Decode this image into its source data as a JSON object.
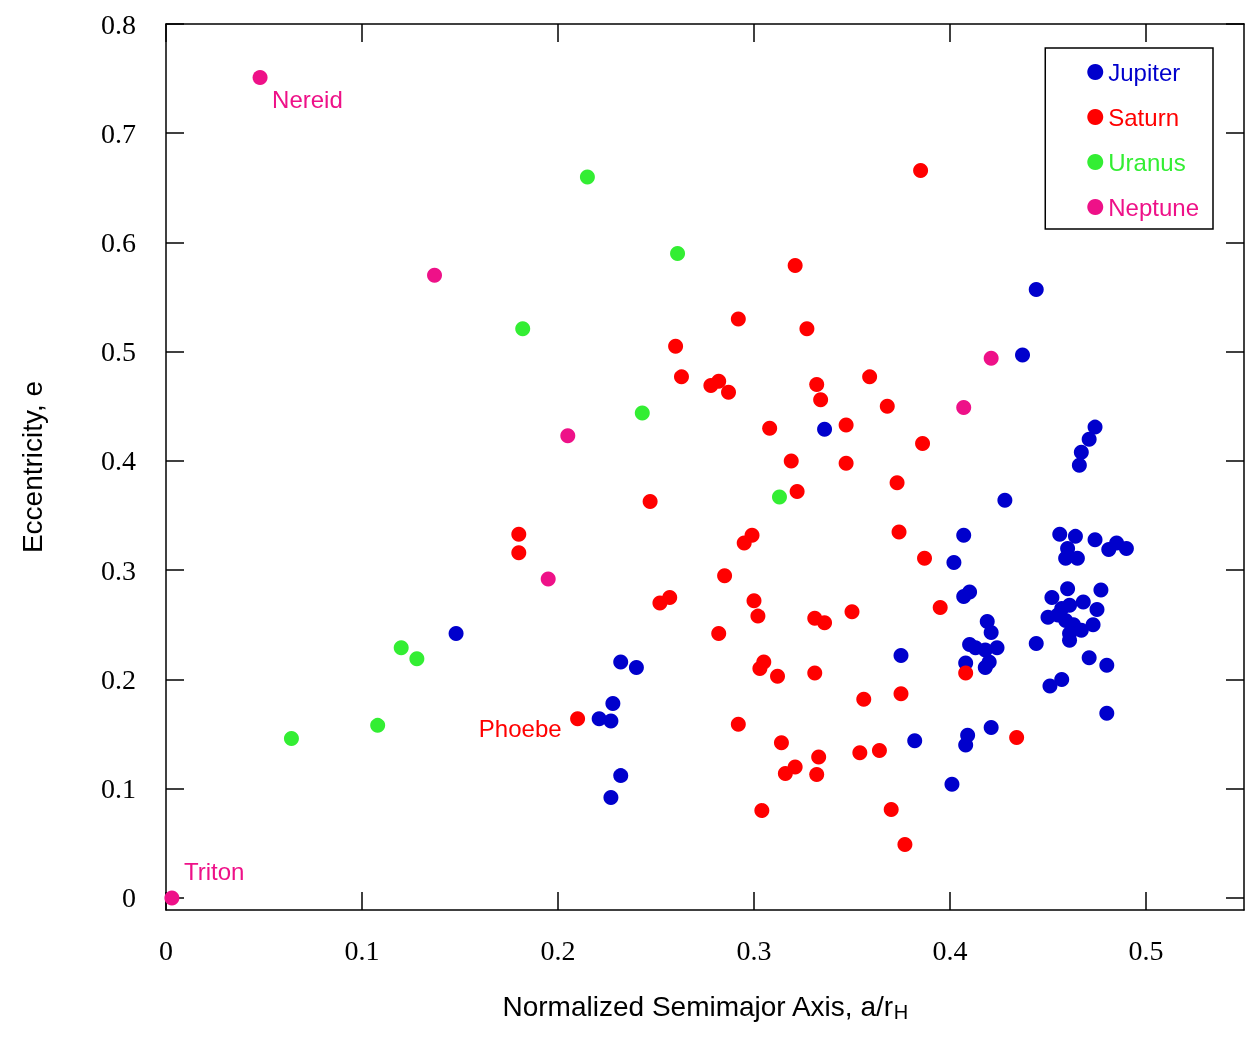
{
  "chart_data": {
    "type": "scatter",
    "xlabel": "Normalized Semimajor Axis, a/r$_{H}$",
    "ylabel": "Eccentricity, e",
    "xlim": [
      0,
      0.55
    ],
    "ylim": [
      -0.011,
      0.8
    ],
    "xticks": [
      0,
      0.1,
      0.2,
      0.3,
      0.4,
      0.5
    ],
    "yticks": [
      0,
      0.1,
      0.2,
      0.3,
      0.4,
      0.5,
      0.6,
      0.7,
      0.8
    ],
    "grid": false,
    "legend": "top right",
    "marker": "circle",
    "annotations": [
      {
        "text": "Nereid",
        "x": 0.048,
        "y": 0.751
      },
      {
        "text": "Phoebe",
        "x": 0.21,
        "y": 0.164
      },
      {
        "text": "Triton",
        "x": 0.003,
        "y": 0
      }
    ],
    "series": [
      {
        "name": "Jupiter",
        "color": "#0000cc",
        "x": [
          0.444,
          0.437,
          0.336,
          0.474,
          0.471,
          0.467,
          0.466,
          0.428,
          0.407,
          0.402,
          0.407,
          0.41,
          0.456,
          0.464,
          0.46,
          0.459,
          0.465,
          0.474,
          0.481,
          0.485,
          0.49,
          0.46,
          0.452,
          0.477,
          0.468,
          0.475,
          0.457,
          0.461,
          0.45,
          0.455,
          0.459,
          0.463,
          0.467,
          0.461,
          0.461,
          0.473,
          0.444,
          0.471,
          0.48,
          0.457,
          0.451,
          0.48,
          0.419,
          0.421,
          0.41,
          0.413,
          0.418,
          0.424,
          0.42,
          0.408,
          0.418,
          0.421,
          0.409,
          0.408,
          0.382,
          0.375,
          0.401,
          0.148,
          0.232,
          0.24,
          0.228,
          0.221,
          0.227,
          0.232,
          0.227
        ],
        "values": [
          0.557,
          0.497,
          0.429,
          0.431,
          0.42,
          0.408,
          0.396,
          0.364,
          0.332,
          0.307,
          0.276,
          0.28,
          0.333,
          0.331,
          0.32,
          0.311,
          0.311,
          0.328,
          0.319,
          0.325,
          0.32,
          0.283,
          0.275,
          0.282,
          0.271,
          0.264,
          0.265,
          0.268,
          0.257,
          0.259,
          0.254,
          0.25,
          0.245,
          0.242,
          0.236,
          0.25,
          0.233,
          0.22,
          0.213,
          0.2,
          0.194,
          0.169,
          0.253,
          0.243,
          0.232,
          0.229,
          0.227,
          0.229,
          0.216,
          0.215,
          0.211,
          0.156,
          0.149,
          0.14,
          0.144,
          0.222,
          0.104,
          0.242,
          0.216,
          0.211,
          0.178,
          0.164,
          0.162,
          0.112,
          0.092
        ]
      },
      {
        "name": "Saturn",
        "color": "#ff0000",
        "x": [
          0.385,
          0.321,
          0.292,
          0.327,
          0.26,
          0.263,
          0.278,
          0.282,
          0.287,
          0.332,
          0.334,
          0.359,
          0.368,
          0.308,
          0.347,
          0.386,
          0.319,
          0.347,
          0.322,
          0.373,
          0.247,
          0.18,
          0.18,
          0.299,
          0.295,
          0.374,
          0.387,
          0.285,
          0.257,
          0.252,
          0.3,
          0.302,
          0.395,
          0.331,
          0.336,
          0.35,
          0.282,
          0.305,
          0.303,
          0.312,
          0.331,
          0.408,
          0.21,
          0.292,
          0.314,
          0.356,
          0.375,
          0.434,
          0.354,
          0.364,
          0.333,
          0.316,
          0.321,
          0.332,
          0.304,
          0.37,
          0.377
        ],
        "values": [
          0.666,
          0.579,
          0.53,
          0.521,
          0.505,
          0.477,
          0.469,
          0.473,
          0.463,
          0.47,
          0.456,
          0.477,
          0.45,
          0.43,
          0.433,
          0.416,
          0.4,
          0.398,
          0.372,
          0.38,
          0.363,
          0.333,
          0.316,
          0.332,
          0.325,
          0.335,
          0.311,
          0.295,
          0.275,
          0.27,
          0.272,
          0.258,
          0.266,
          0.256,
          0.252,
          0.262,
          0.242,
          0.216,
          0.21,
          0.203,
          0.206,
          0.206,
          0.164,
          0.159,
          0.142,
          0.182,
          0.187,
          0.147,
          0.133,
          0.135,
          0.129,
          0.114,
          0.12,
          0.113,
          0.08,
          0.081,
          0.049
        ]
      },
      {
        "name": "Uranus",
        "color": "#33ee33",
        "x": [
          0.215,
          0.261,
          0.182,
          0.243,
          0.313,
          0.12,
          0.128,
          0.108,
          0.064
        ],
        "values": [
          0.66,
          0.59,
          0.521,
          0.444,
          0.367,
          0.229,
          0.219,
          0.158,
          0.146
        ]
      },
      {
        "name": "Neptune",
        "color": "#ee1188",
        "x": [
          0.048,
          0.137,
          0.205,
          0.195,
          0.407,
          0.421,
          0.003
        ],
        "values": [
          0.751,
          0.57,
          0.423,
          0.292,
          0.449,
          0.494,
          0
        ]
      }
    ]
  }
}
